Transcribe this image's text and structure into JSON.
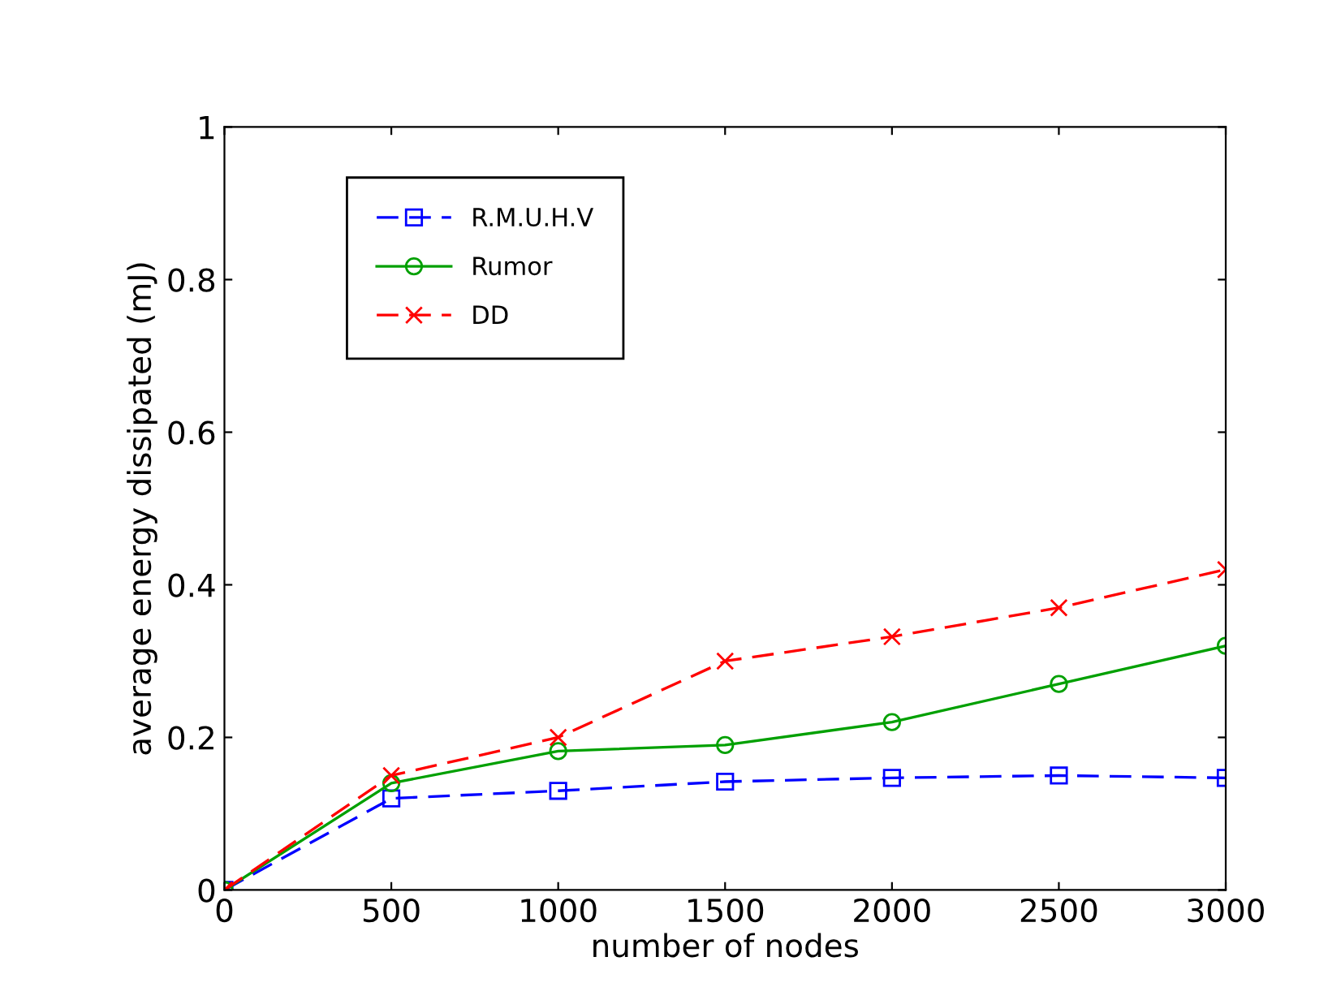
{
  "chart_data": {
    "type": "line",
    "xlabel": "number of nodes",
    "ylabel": "average energy dissipated (mJ)",
    "x": [
      0,
      500,
      1000,
      1500,
      2000,
      2500,
      3000
    ],
    "series": [
      {
        "name": "R.M.U.H.V",
        "color": "#0000ff",
        "marker": "square",
        "line_style": "dashed",
        "values": [
          0,
          0.12,
          0.13,
          0.142,
          0.147,
          0.15,
          0.147
        ]
      },
      {
        "name": "Rumor",
        "color": "#00a000",
        "marker": "circle",
        "line_style": "solid",
        "values": [
          0,
          0.14,
          0.182,
          0.19,
          0.22,
          0.27,
          0.32
        ]
      },
      {
        "name": "DD",
        "color": "#ff0000",
        "marker": "cross",
        "line_style": "dashed",
        "values": [
          0,
          0.15,
          0.2,
          0.3,
          0.332,
          0.37,
          0.42
        ]
      }
    ],
    "xlim": [
      0,
      3000
    ],
    "ylim": [
      0,
      1
    ],
    "xticks": [
      0,
      500,
      1000,
      1500,
      2000,
      2500,
      3000
    ],
    "yticks": [
      0,
      0.2,
      0.4,
      0.6,
      0.8,
      1
    ],
    "grid": false,
    "legend": "top left"
  }
}
